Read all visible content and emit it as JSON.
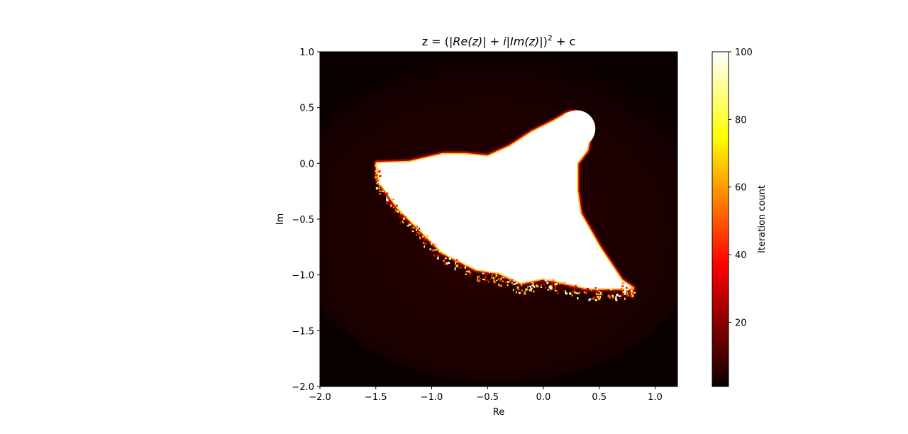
{
  "chart_data": {
    "type": "heatmap",
    "title_parts": [
      "z = (",
      "|Re(z)| + i|Im(z)|",
      ")",
      "2",
      " + c"
    ],
    "xlabel": "Re",
    "ylabel": "Im",
    "xlim": [
      -2.0,
      1.2
    ],
    "ylim": [
      -2.0,
      1.0
    ],
    "x_ticks": [
      -2.0,
      -1.5,
      -1.0,
      -0.5,
      0.0,
      0.5,
      1.0
    ],
    "x_tick_labels": [
      "−2.0",
      "−1.5",
      "−1.0",
      "−0.5",
      "0.0",
      "0.5",
      "1.0"
    ],
    "y_ticks": [
      1.0,
      0.5,
      0.0,
      -0.5,
      -1.0,
      -1.5,
      -2.0
    ],
    "y_tick_labels": [
      "1.0",
      "0.5",
      "0.0",
      "−0.5",
      "−1.0",
      "−1.5",
      "−2.0"
    ],
    "colormap": "hot",
    "colorbar": {
      "label": "Iteration count",
      "range": [
        1,
        100
      ],
      "ticks": [
        100,
        80,
        60,
        40,
        20
      ],
      "tick_labels": [
        "100",
        "80",
        "60",
        "40",
        "20"
      ]
    },
    "colors": {
      "background": "#0a0000",
      "set": "#ffffff",
      "boundary_red": "#e60000",
      "boundary_yellow": "#ffff40"
    },
    "set_region_outline": [
      [
        -1.49,
        0.0
      ],
      [
        -1.2,
        0.01
      ],
      [
        -0.9,
        0.08
      ],
      [
        -0.7,
        0.08
      ],
      [
        -0.5,
        0.06
      ],
      [
        -0.3,
        0.15
      ],
      [
        -0.1,
        0.28
      ],
      [
        0.1,
        0.38
      ],
      [
        0.17,
        0.42
      ],
      [
        0.2,
        0.44
      ],
      [
        0.25,
        0.455
      ],
      [
        0.3,
        0.45
      ],
      [
        0.36,
        0.36
      ],
      [
        0.42,
        0.28
      ],
      [
        0.39,
        0.12
      ],
      [
        0.3,
        0.0
      ],
      [
        0.3,
        -0.25
      ],
      [
        0.33,
        -0.45
      ],
      [
        0.5,
        -0.75
      ],
      [
        0.7,
        -1.05
      ],
      [
        0.8,
        -1.12
      ],
      [
        0.6,
        -1.12
      ],
      [
        0.4,
        -1.12
      ],
      [
        0.1,
        -1.05
      ],
      [
        0.0,
        -1.03
      ],
      [
        -0.2,
        -1.07
      ],
      [
        -0.4,
        -0.98
      ],
      [
        -0.6,
        -0.95
      ],
      [
        -0.9,
        -0.8
      ],
      [
        -1.1,
        -0.6
      ],
      [
        -1.3,
        -0.4
      ],
      [
        -1.48,
        -0.15
      ]
    ]
  }
}
